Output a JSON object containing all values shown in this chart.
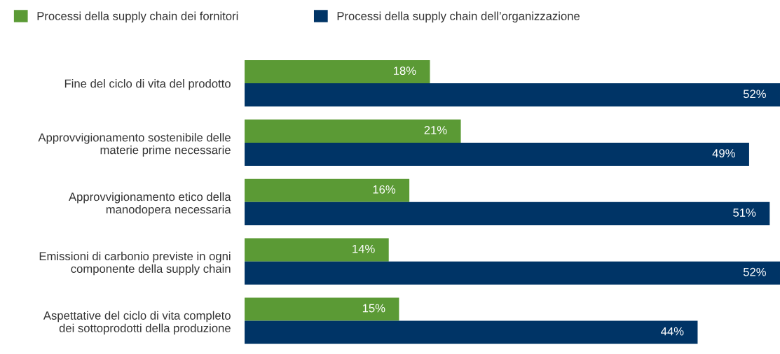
{
  "chart_data": {
    "type": "bar",
    "orientation": "horizontal",
    "categories": [
      "Fine del ciclo di vita del prodotto",
      "Approvvigionamento sostenibile delle\nmaterie prime necessarie",
      "Approvvigionamento etico della\nmanodopera necessaria",
      "Emissioni di carbonio previste in ogni\ncomponente della supply chain",
      "Aspettative del ciclo di vita completo\ndei sottoprodotti della produzione"
    ],
    "series": [
      {
        "name": "Processi della supply chain dei fornitori",
        "color": "#5b9a35",
        "values": [
          18,
          21,
          16,
          14,
          15
        ],
        "value_labels": [
          "18%",
          "21%",
          "16%",
          "14%",
          "15%"
        ]
      },
      {
        "name": "Processi della supply chain dell’organizzazione",
        "color": "#003466",
        "values": [
          52,
          49,
          51,
          52,
          44
        ],
        "value_labels": [
          "52%",
          "49%",
          "51%",
          "52%",
          "44%"
        ]
      }
    ],
    "xlim": [
      0,
      52
    ],
    "tick_labels": "y",
    "grid": false,
    "legend": "top left"
  }
}
